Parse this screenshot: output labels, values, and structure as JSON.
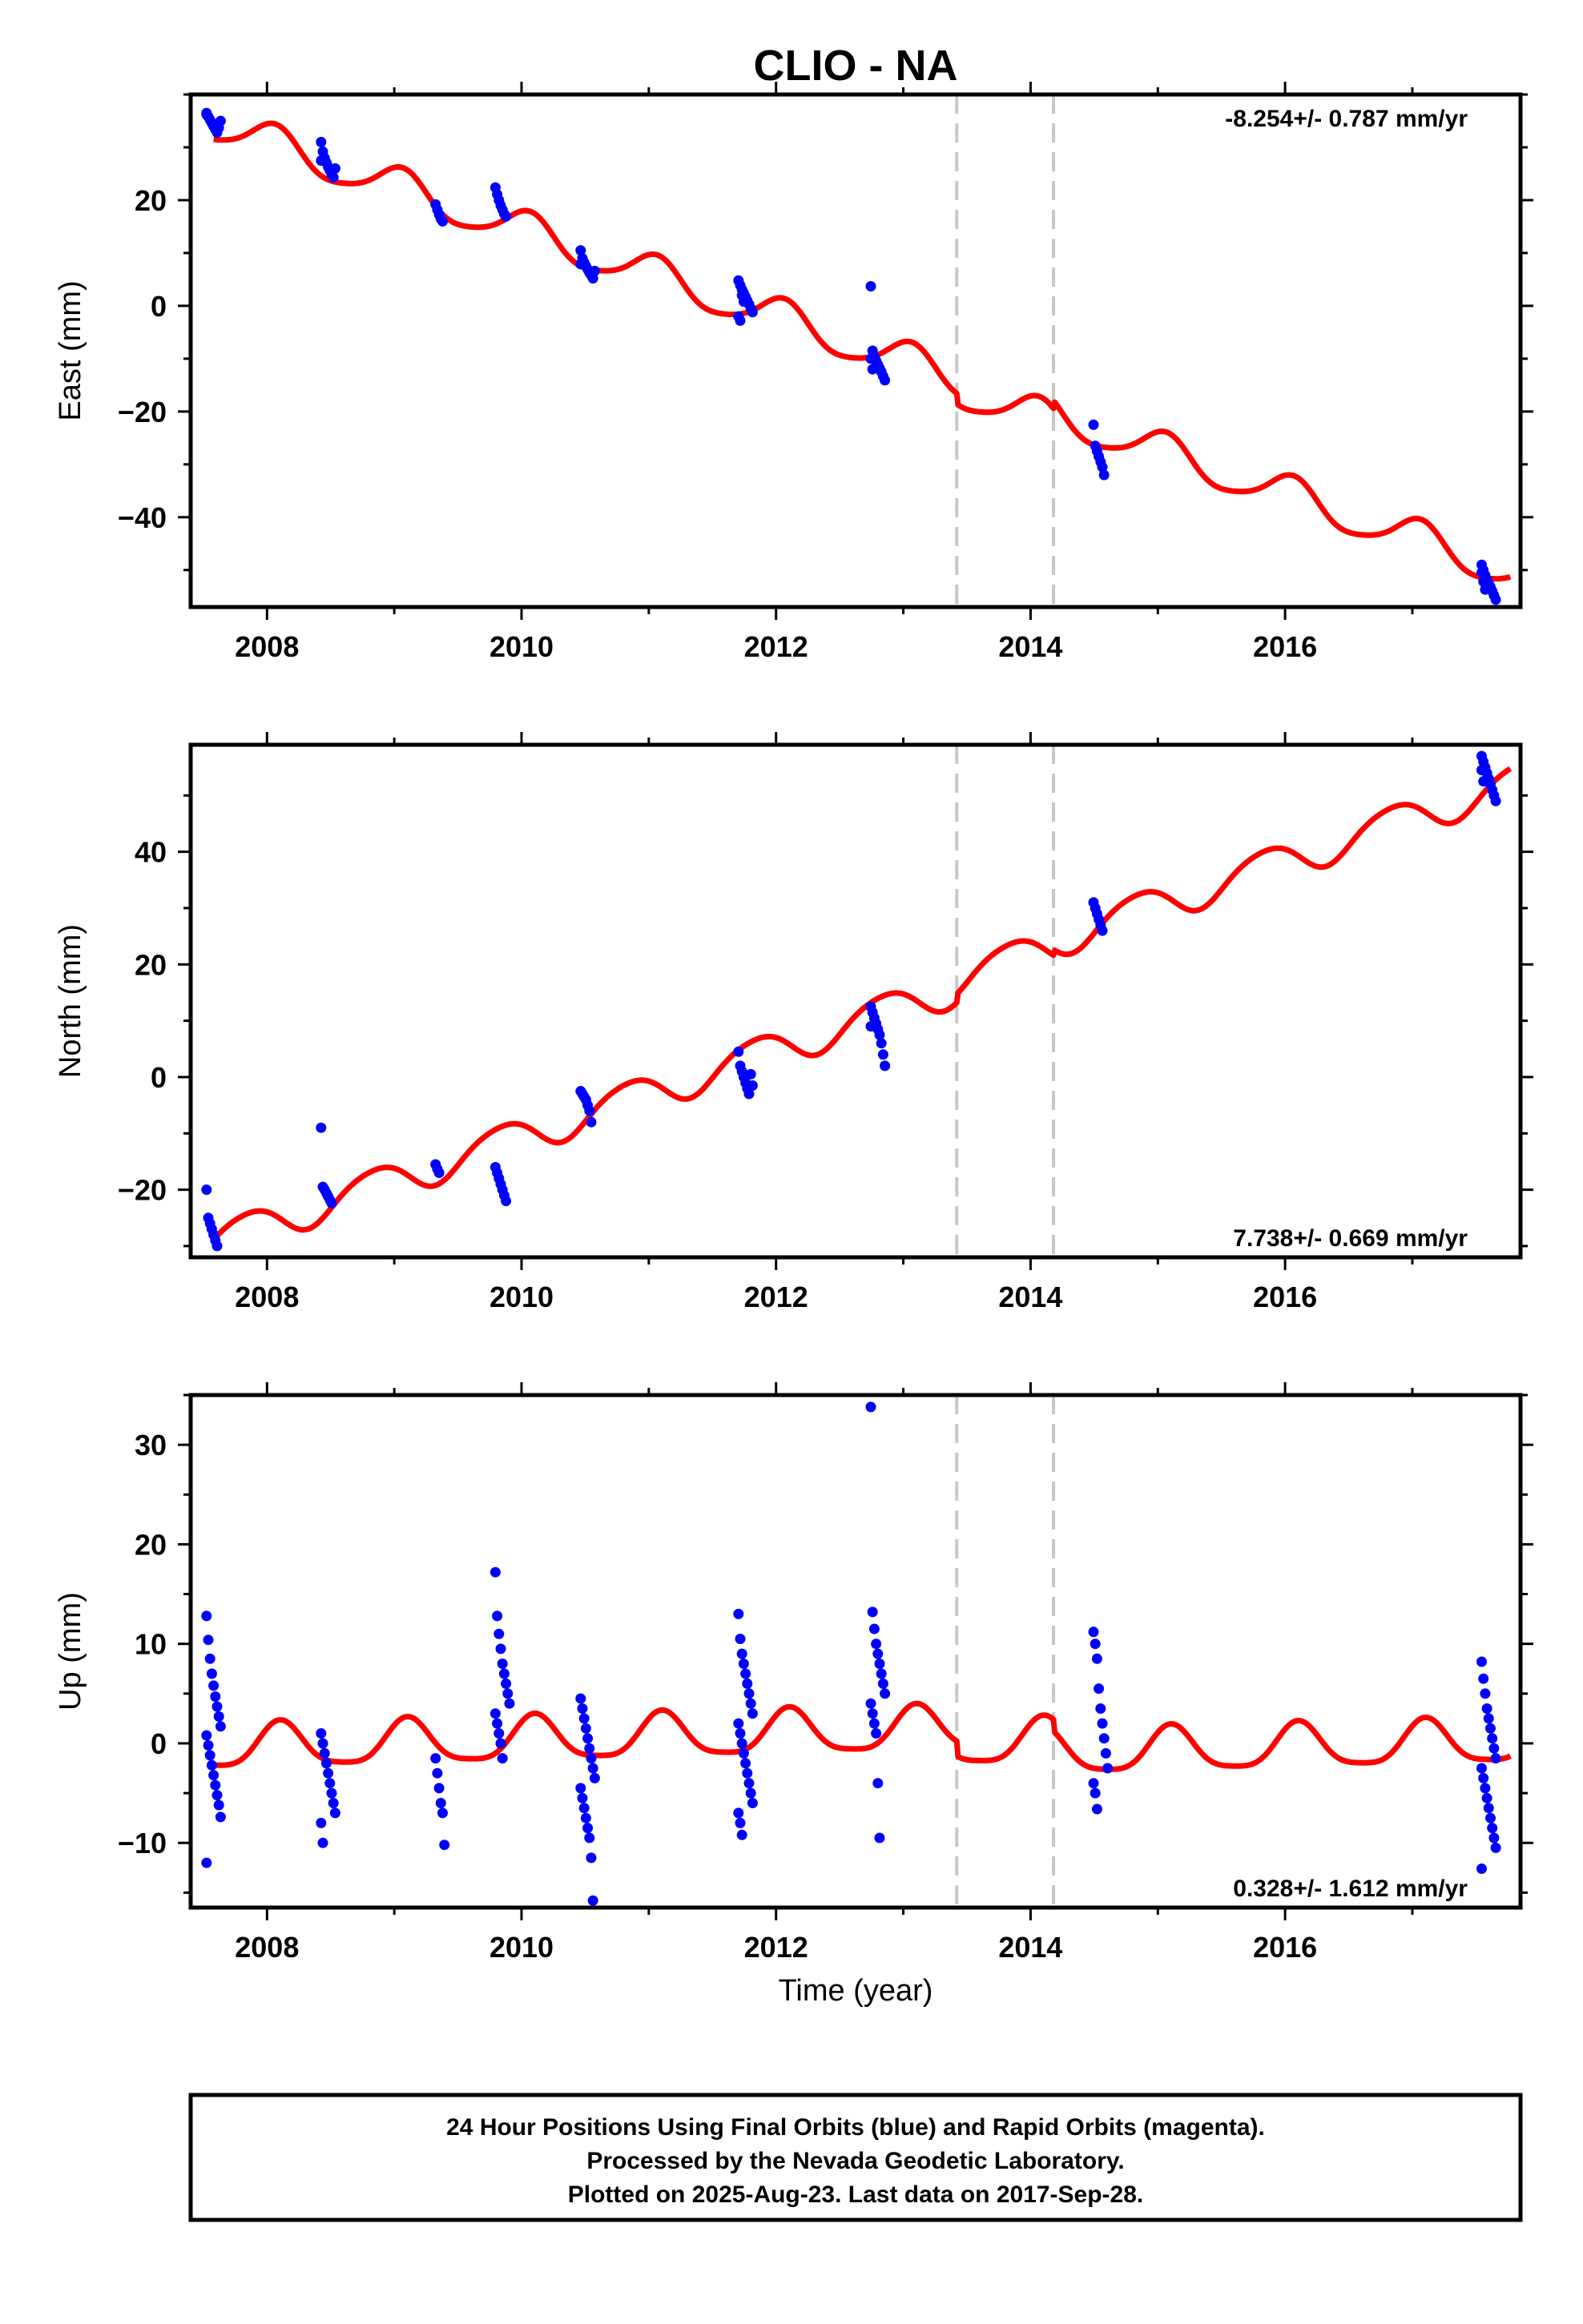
{
  "title": "CLIO - NA",
  "xlabel": "Time (year)",
  "footer": {
    "line1": "24 Hour Positions Using Final Orbits (blue) and Rapid Orbits (magenta).",
    "line2": "Processed by the Nevada Geodetic Laboratory.",
    "line3": "Plotted on 2025-Aug-23. Last data on 2017-Sep-28."
  },
  "colors": {
    "points": "#0000ff",
    "model": "#ff0000",
    "steps": "#c8c8c8",
    "frame": "#000000"
  },
  "chart_data": [
    {
      "type": "scatter",
      "component": "east",
      "ylabel": "East (mm)",
      "rate_text": "-8.254+/- 0.787 mm/yr",
      "rate_position": "top-right",
      "xlim": [
        2007.4,
        2017.85
      ],
      "ylim": [
        -57,
        40
      ],
      "xticks": [
        2008,
        2010,
        2012,
        2014,
        2016
      ],
      "yticks": [
        -40,
        -20,
        0,
        20
      ],
      "step_epochs": [
        2013.42,
        2014.18
      ],
      "model": {
        "rate": -8.254,
        "intercept_2007": 34.2,
        "t0": 2007.6,
        "annual_amp": 3.5,
        "annual_phase": 1.25,
        "semiannual_amp": 0.6,
        "semiannual_phase": 0.4,
        "offsets": [
          {
            "epoch": 2013.42,
            "value": -2.0
          },
          {
            "epoch": 2014.18,
            "value": 1.5
          }
        ]
      },
      "clusters": [
        {
          "epoch": 2007.58,
          "values": [
            36.5,
            35.8,
            35.2,
            34.6,
            34.0,
            33.4,
            32.8,
            33.7,
            35.0,
            36.2
          ]
        },
        {
          "epoch": 2008.48,
          "values": [
            31.0,
            29.2,
            28.0,
            27.1,
            26.3,
            25.6,
            24.9,
            24.3,
            26.0,
            27.5
          ]
        },
        {
          "epoch": 2009.38,
          "values": [
            19.2,
            18.2,
            17.3,
            16.5,
            16.0
          ]
        },
        {
          "epoch": 2009.85,
          "values": [
            22.4,
            21.1,
            20.0,
            19.0,
            18.2,
            17.4,
            16.9
          ]
        },
        {
          "epoch": 2010.52,
          "values": [
            10.5,
            9.0,
            8.2,
            7.5,
            6.9,
            6.3,
            5.8,
            5.2,
            6.6,
            7.9
          ]
        },
        {
          "epoch": 2011.76,
          "values": [
            4.8,
            3.9,
            3.1,
            2.4,
            1.7,
            1.0,
            0.3,
            -0.5,
            -1.2,
            -2.0,
            -2.8,
            2.0,
            0.8
          ]
        },
        {
          "epoch": 2012.8,
          "values": [
            3.7,
            -8.5,
            -9.6,
            -10.4,
            -11.1,
            -11.8,
            -12.5,
            -13.3,
            -14.1,
            -10.0,
            -12.0
          ]
        },
        {
          "epoch": 2014.55,
          "values": [
            -22.5,
            -26.5,
            -27.5,
            -28.5,
            -29.5,
            -30.5,
            -32.0
          ]
        },
        {
          "epoch": 2017.6,
          "values": [
            -49.0,
            -50.0,
            -51.0,
            -51.8,
            -52.5,
            -53.2,
            -54.0,
            -54.8,
            -55.6,
            -50.5,
            -52.2,
            -53.7
          ]
        }
      ]
    },
    {
      "type": "scatter",
      "component": "north",
      "ylabel": "North (mm)",
      "rate_text": "7.738+/- 0.669 mm/yr",
      "rate_position": "bottom-right",
      "xlim": [
        2007.4,
        2017.85
      ],
      "ylim": [
        -32,
        59
      ],
      "xticks": [
        2008,
        2010,
        2012,
        2014,
        2016
      ],
      "yticks": [
        -20,
        0,
        20,
        40
      ],
      "step_epochs": [
        2013.42,
        2014.18
      ],
      "model": {
        "rate": 7.738,
        "intercept_2007": -29.0,
        "t0": 2007.6,
        "annual_amp": 3.2,
        "annual_phase": 2.6,
        "semiannual_amp": 0.4,
        "semiannual_phase": 0.9,
        "offsets": [
          {
            "epoch": 2013.42,
            "value": 1.5
          },
          {
            "epoch": 2014.18,
            "value": 1.0
          }
        ]
      },
      "clusters": [
        {
          "epoch": 2007.58,
          "values": [
            -20.0,
            -25.0,
            -26.0,
            -27.0,
            -28.0,
            -29.0,
            -30.0
          ]
        },
        {
          "epoch": 2008.48,
          "values": [
            -9.0,
            -19.5,
            -20.0,
            -20.6,
            -21.2,
            -21.8,
            -22.4
          ]
        },
        {
          "epoch": 2009.38,
          "values": [
            -15.5,
            -16.3,
            -17.0
          ]
        },
        {
          "epoch": 2009.85,
          "values": [
            -16.0,
            -17.0,
            -18.0,
            -19.0,
            -20.0,
            -21.0,
            -22.0
          ]
        },
        {
          "epoch": 2010.52,
          "values": [
            -2.5,
            -3.0,
            -3.5,
            -4.0,
            -5.0,
            -6.0,
            -8.0
          ]
        },
        {
          "epoch": 2011.76,
          "values": [
            4.5,
            2.0,
            1.0,
            0.0,
            -1.0,
            -2.0,
            -3.0,
            0.5,
            -1.5
          ]
        },
        {
          "epoch": 2012.8,
          "values": [
            12.5,
            11.5,
            10.5,
            9.5,
            8.5,
            7.5,
            6.0,
            4.0,
            2.0,
            9.0
          ]
        },
        {
          "epoch": 2014.55,
          "values": [
            31.0,
            30.0,
            29.0,
            28.0,
            27.0,
            26.0
          ]
        },
        {
          "epoch": 2017.6,
          "values": [
            57.0,
            56.0,
            55.0,
            54.0,
            53.0,
            52.0,
            51.0,
            50.0,
            49.0,
            54.5,
            52.5
          ]
        }
      ]
    },
    {
      "type": "scatter",
      "component": "up",
      "ylabel": "Up (mm)",
      "rate_text": "0.328+/- 1.612 mm/yr",
      "rate_position": "bottom-right",
      "xlim": [
        2007.4,
        2017.85
      ],
      "ylim": [
        -16.5,
        35
      ],
      "xticks": [
        2008,
        2010,
        2012,
        2014,
        2016
      ],
      "yticks": [
        -10,
        0,
        10,
        20,
        30
      ],
      "step_epochs": [
        2013.42,
        2014.18
      ],
      "model": {
        "rate": 0.328,
        "intercept_2007": -0.5,
        "t0": 2007.6,
        "annual_amp": 2.2,
        "annual_phase": 0.9,
        "semiannual_amp": 0.5,
        "semiannual_phase": 0.3,
        "offsets": [
          {
            "epoch": 2013.42,
            "value": -1.5
          },
          {
            "epoch": 2014.18,
            "value": -1.2
          }
        ]
      },
      "clusters": [
        {
          "epoch": 2007.58,
          "values": [
            12.8,
            10.4,
            8.5,
            7.0,
            5.8,
            4.7,
            3.7,
            2.7,
            1.7,
            0.8,
            -0.2,
            -1.2,
            -2.2,
            -3.2,
            -4.2,
            -5.2,
            -6.2,
            -7.4,
            -12.0
          ]
        },
        {
          "epoch": 2008.48,
          "values": [
            1.0,
            0.0,
            -1.0,
            -2.0,
            -3.0,
            -4.0,
            -5.0,
            -6.0,
            -7.0,
            -8.0,
            -10.0
          ]
        },
        {
          "epoch": 2009.38,
          "values": [
            -1.5,
            -3.0,
            -4.5,
            -6.0,
            -7.0,
            -10.2
          ]
        },
        {
          "epoch": 2009.85,
          "values": [
            17.2,
            12.8,
            11.0,
            9.5,
            8.0,
            7.0,
            6.0,
            5.0,
            4.0,
            3.0,
            2.0,
            1.0,
            0.0,
            -1.5
          ]
        },
        {
          "epoch": 2010.52,
          "values": [
            4.5,
            3.5,
            2.5,
            1.5,
            0.5,
            -0.5,
            -1.5,
            -2.5,
            -3.5,
            -4.5,
            -5.5,
            -6.5,
            -7.5,
            -8.5,
            -9.5,
            -11.5,
            -15.8
          ]
        },
        {
          "epoch": 2011.76,
          "values": [
            13.0,
            10.5,
            9.0,
            8.0,
            7.0,
            6.0,
            5.0,
            4.0,
            3.0,
            2.0,
            1.0,
            0.0,
            -1.0,
            -2.0,
            -3.0,
            -4.0,
            -5.0,
            -6.0,
            -7.0,
            -8.0,
            -9.2
          ]
        },
        {
          "epoch": 2012.8,
          "values": [
            33.8,
            13.2,
            11.5,
            10.0,
            9.0,
            8.0,
            7.0,
            6.0,
            5.0,
            4.0,
            3.0,
            2.0,
            1.0,
            -4.0,
            -9.5
          ]
        },
        {
          "epoch": 2014.55,
          "values": [
            11.2,
            10.0,
            8.5,
            5.5,
            3.5,
            2.0,
            0.5,
            -1.0,
            -2.5,
            -4.0,
            -5.0,
            -6.6
          ]
        },
        {
          "epoch": 2017.6,
          "values": [
            8.2,
            6.5,
            5.0,
            3.5,
            2.5,
            1.5,
            0.5,
            -0.5,
            -1.5,
            -2.5,
            -3.5,
            -4.5,
            -5.5,
            -6.5,
            -7.5,
            -8.5,
            -9.5,
            -10.5,
            -12.6
          ]
        }
      ]
    }
  ]
}
